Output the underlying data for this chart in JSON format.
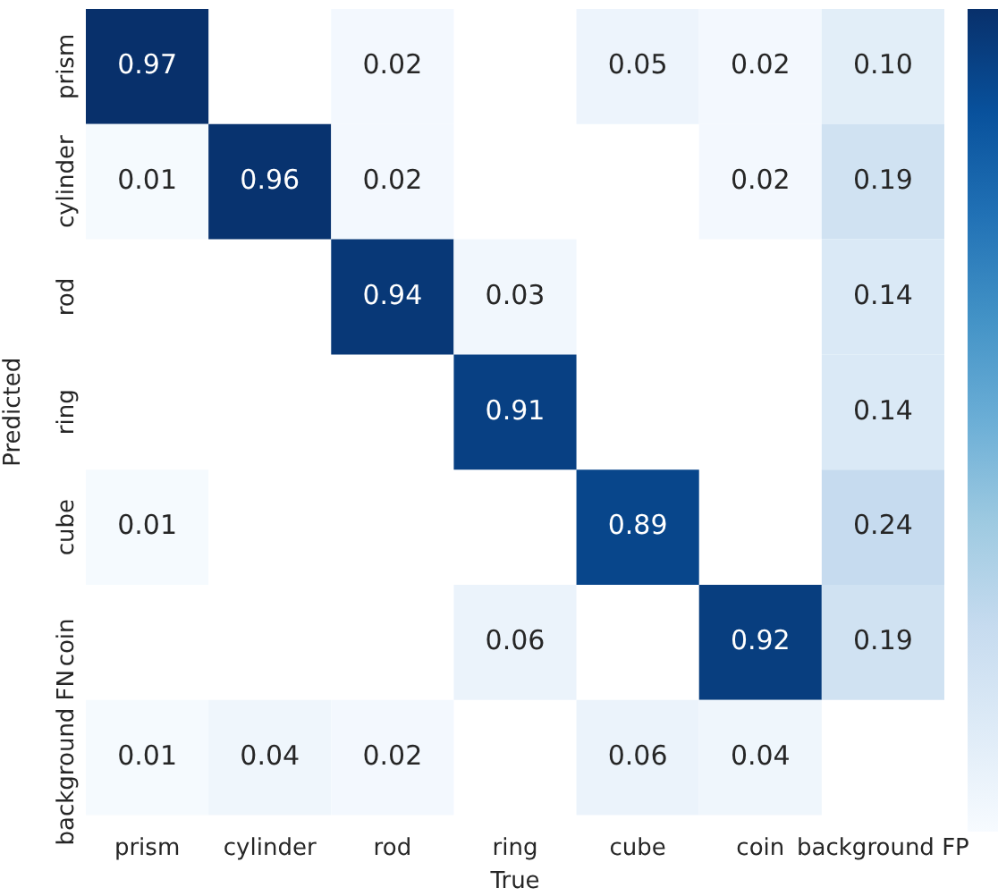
{
  "chart_data": {
    "type": "heatmap",
    "xlabel": "True",
    "ylabel": "Predicted",
    "categories": [
      "prism",
      "cylinder",
      "rod",
      "ring",
      "cube",
      "coin",
      "background FP"
    ],
    "y_categories": [
      "prism",
      "cylinder",
      "rod",
      "ring",
      "cube",
      "coin",
      "background FN"
    ],
    "cells": [
      [
        0.97,
        null,
        0.02,
        null,
        0.05,
        0.02,
        0.1
      ],
      [
        0.01,
        0.96,
        0.02,
        null,
        null,
        0.02,
        0.19
      ],
      [
        null,
        null,
        0.94,
        0.03,
        null,
        null,
        0.14
      ],
      [
        null,
        null,
        null,
        0.91,
        null,
        null,
        0.14
      ],
      [
        0.01,
        null,
        null,
        null,
        0.89,
        null,
        0.24
      ],
      [
        null,
        null,
        null,
        0.06,
        null,
        0.92,
        0.19
      ],
      [
        0.01,
        0.04,
        0.02,
        null,
        0.06,
        0.04,
        null
      ]
    ],
    "cell_labels": [
      [
        "0.97",
        null,
        "0.02",
        null,
        "0.05",
        "0.02",
        "0.10"
      ],
      [
        "0.01",
        "0.96",
        "0.02",
        null,
        null,
        "0.02",
        "0.19"
      ],
      [
        null,
        null,
        "0.94",
        "0.03",
        null,
        null,
        "0.14"
      ],
      [
        null,
        null,
        null,
        "0.91",
        null,
        null,
        "0.14"
      ],
      [
        "0.01",
        null,
        null,
        null,
        "0.89",
        null,
        "0.24"
      ],
      [
        null,
        null,
        null,
        "0.06",
        null,
        "0.92",
        "0.19"
      ],
      [
        "0.01",
        "0.04",
        "0.02",
        null,
        "0.06",
        "0.04",
        null
      ]
    ]
  }
}
